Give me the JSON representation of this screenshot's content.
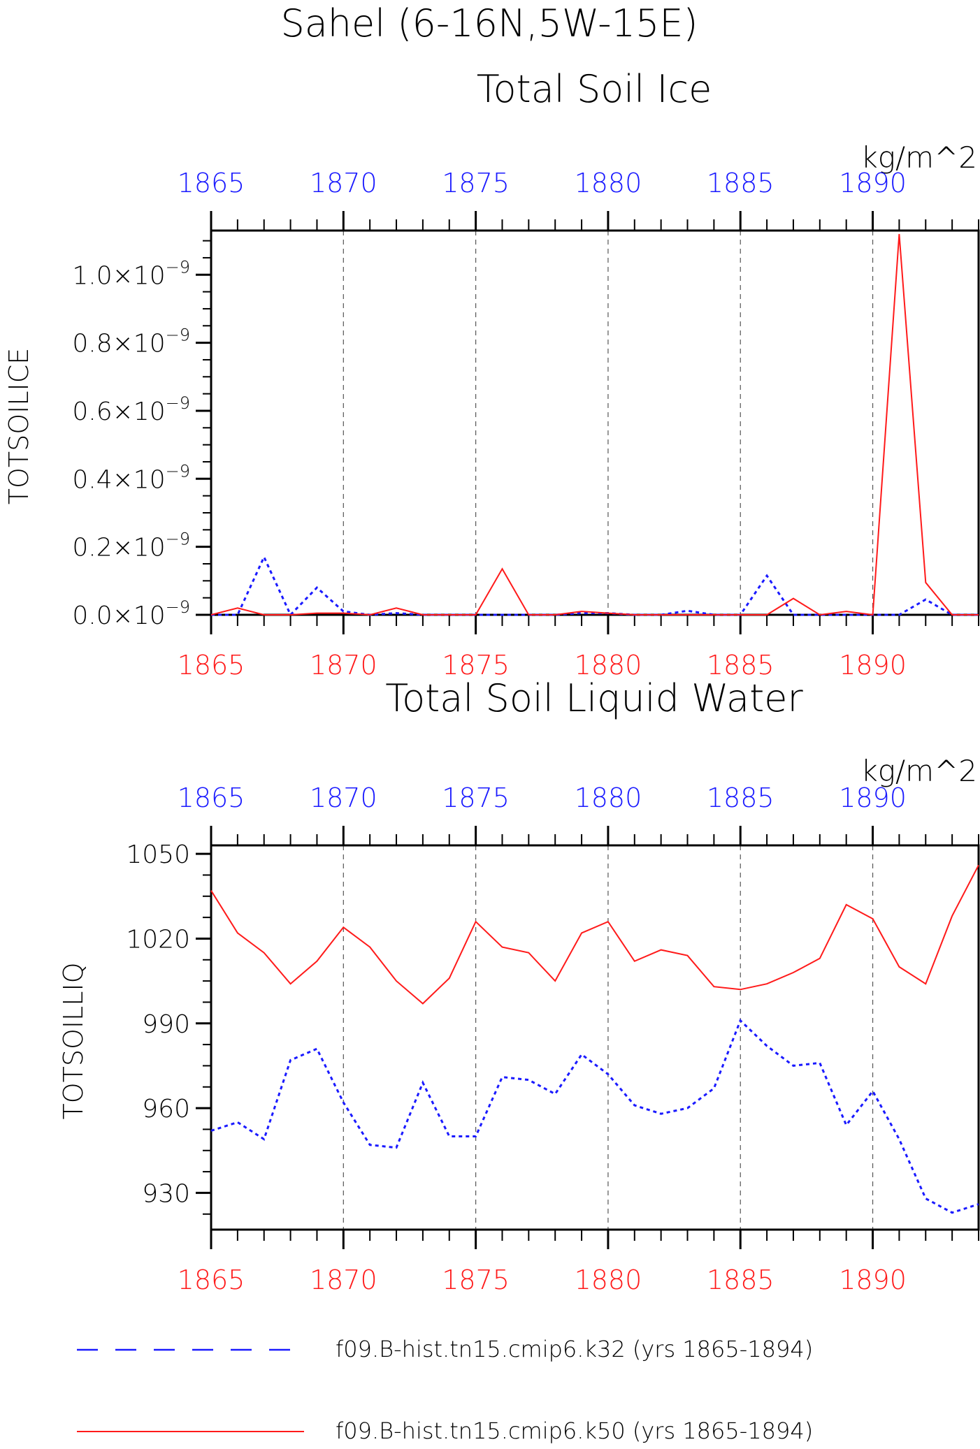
{
  "figure": {
    "main_title": "Sahel (6-16N,5W-15E)",
    "colors": {
      "blue": "#1a1aff",
      "red": "#ff1a1a",
      "axis": "#000000",
      "grid": "#555555"
    }
  },
  "legend": {
    "items": [
      {
        "label": "f09.B-hist.tn15.cmip6.k32 (yrs 1865-1894)",
        "color": "#1a1aff",
        "style": "dashed"
      },
      {
        "label": "f09.B-hist.tn15.cmip6.k50 (yrs 1865-1894)",
        "color": "#ff1a1a",
        "style": "solid"
      }
    ]
  },
  "chart_data": [
    {
      "type": "line",
      "title": "Total Soil Ice",
      "ylabel": "TOTSOILICE",
      "units": "kg/m^2",
      "xlim": [
        1865,
        1894
      ],
      "ylim": [
        0,
        1.13e-09
      ],
      "x_ticks": [
        "1865",
        "1870",
        "1875",
        "1880",
        "1885",
        "1890"
      ],
      "y_ticks": [
        {
          "base": "0.0×10",
          "exp": "−9",
          "value": 0
        },
        {
          "base": "0.2×10",
          "exp": "−9",
          "value": 2e-10
        },
        {
          "base": "0.4×10",
          "exp": "−9",
          "value": 4e-10
        },
        {
          "base": "0.6×10",
          "exp": "−9",
          "value": 6e-10
        },
        {
          "base": "0.8×10",
          "exp": "−9",
          "value": 8e-10
        },
        {
          "base": "1.0×10",
          "exp": "−9",
          "value": 1e-09
        }
      ],
      "grid_x": [
        1870,
        1875,
        1880,
        1885,
        1890
      ],
      "x": [
        1865,
        1866,
        1867,
        1868,
        1869,
        1870,
        1871,
        1872,
        1873,
        1874,
        1875,
        1876,
        1877,
        1878,
        1879,
        1880,
        1881,
        1882,
        1883,
        1884,
        1885,
        1886,
        1887,
        1888,
        1889,
        1890,
        1891,
        1892,
        1893,
        1894
      ],
      "series": [
        {
          "name": "f09.B-hist.tn15.cmip6.k32 (yrs 1865-1894)",
          "color": "#1a1aff",
          "style": "dashed",
          "values": [
            0,
            0,
            1.7e-10,
            0,
            8e-11,
            1e-11,
            0,
            5e-12,
            0,
            0,
            0,
            0,
            0,
            0,
            5e-12,
            5e-12,
            0,
            0,
            1.2e-11,
            0,
            0,
            1.15e-10,
            0,
            0,
            0,
            0,
            0,
            4.5e-11,
            0,
            0
          ]
        },
        {
          "name": "f09.B-hist.tn15.cmip6.k50 (yrs 1865-1894)",
          "color": "#ff1a1a",
          "style": "solid",
          "values": [
            0,
            2e-11,
            0,
            0,
            5e-12,
            5e-12,
            0,
            2e-11,
            0,
            0,
            0,
            1.35e-10,
            0,
            0,
            1e-11,
            5e-12,
            0,
            0,
            0,
            0,
            0,
            0,
            4.8e-11,
            0,
            1e-11,
            0,
            1.12e-09,
            9.5e-11,
            0,
            0
          ]
        }
      ]
    },
    {
      "type": "line",
      "title": "Total Soil Liquid Water",
      "ylabel": "TOTSOILLIQ",
      "units": "kg/m^2",
      "xlim": [
        1865,
        1894
      ],
      "ylim": [
        917,
        1053
      ],
      "x_ticks": [
        "1865",
        "1870",
        "1875",
        "1880",
        "1885",
        "1890"
      ],
      "y_ticks": [
        {
          "base": "930",
          "exp": "",
          "value": 930
        },
        {
          "base": "960",
          "exp": "",
          "value": 960
        },
        {
          "base": "990",
          "exp": "",
          "value": 990
        },
        {
          "base": "1020",
          "exp": "",
          "value": 1020
        },
        {
          "base": "1050",
          "exp": "",
          "value": 1050
        }
      ],
      "grid_x": [
        1870,
        1875,
        1880,
        1885,
        1890
      ],
      "x": [
        1865,
        1866,
        1867,
        1868,
        1869,
        1870,
        1871,
        1872,
        1873,
        1874,
        1875,
        1876,
        1877,
        1878,
        1879,
        1880,
        1881,
        1882,
        1883,
        1884,
        1885,
        1886,
        1887,
        1888,
        1889,
        1890,
        1891,
        1892,
        1893,
        1894
      ],
      "series": [
        {
          "name": "f09.B-hist.tn15.cmip6.k32 (yrs 1865-1894)",
          "color": "#1a1aff",
          "style": "dashed",
          "values": [
            952,
            955,
            949,
            977,
            981,
            962,
            947,
            946,
            969,
            950,
            950,
            971,
            970,
            965,
            979,
            972,
            961,
            958,
            960,
            967,
            991,
            982,
            975,
            976,
            954,
            966,
            949,
            928,
            923,
            926
          ]
        },
        {
          "name": "f09.B-hist.tn15.cmip6.k50 (yrs 1865-1894)",
          "color": "#ff1a1a",
          "style": "solid",
          "values": [
            1037,
            1022,
            1015,
            1004,
            1012,
            1024,
            1017,
            1005,
            997,
            1006,
            1026,
            1017,
            1015,
            1005,
            1022,
            1026,
            1012,
            1016,
            1014,
            1003,
            1002,
            1004,
            1008,
            1013,
            1032,
            1027,
            1010,
            1004,
            1028,
            1046
          ]
        }
      ]
    }
  ]
}
